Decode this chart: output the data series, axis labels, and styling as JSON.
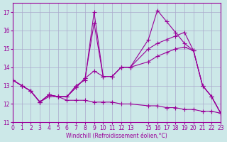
{
  "background_color": "#cce8e8",
  "grid_color": "#aaaacc",
  "line_color": "#990099",
  "xlim": [
    0,
    23
  ],
  "ylim": [
    11,
    17.5
  ],
  "yticks": [
    11,
    12,
    13,
    14,
    15,
    16,
    17
  ],
  "xticks": [
    0,
    1,
    2,
    3,
    4,
    5,
    6,
    7,
    8,
    9,
    10,
    11,
    12,
    13,
    15,
    16,
    17,
    18,
    19,
    20,
    21,
    22,
    23
  ],
  "xlabel": "Windchill (Refroidissement éolien,°C)",
  "series": [
    [
      13.3,
      13.0,
      12.7,
      12.1,
      12.5,
      12.4,
      12.4,
      13.0,
      13.3,
      17.0,
      13.5,
      13.5,
      14.0,
      14.0,
      15.5,
      17.1,
      16.5,
      15.9,
      15.3,
      14.9,
      13.0,
      12.4,
      11.5
    ],
    [
      13.3,
      13.0,
      12.7,
      12.1,
      12.5,
      12.4,
      12.4,
      12.9,
      13.4,
      16.4,
      13.5,
      13.5,
      14.0,
      14.0,
      15.0,
      15.3,
      15.5,
      15.7,
      15.9,
      14.9,
      13.0,
      12.4,
      11.5
    ],
    [
      13.3,
      13.0,
      12.7,
      12.1,
      12.5,
      12.4,
      12.4,
      12.9,
      13.4,
      13.8,
      13.5,
      13.5,
      14.0,
      14.0,
      14.3,
      14.6,
      14.8,
      15.0,
      15.1,
      14.9,
      13.0,
      12.4,
      11.5
    ],
    [
      13.3,
      13.0,
      12.7,
      12.1,
      12.4,
      12.4,
      12.2,
      12.2,
      12.2,
      12.1,
      12.1,
      12.1,
      12.0,
      12.0,
      11.9,
      11.9,
      11.8,
      11.8,
      11.7,
      11.7,
      11.6,
      11.6,
      11.5
    ]
  ],
  "x_values": [
    0,
    1,
    2,
    3,
    4,
    5,
    6,
    7,
    8,
    9,
    10,
    11,
    12,
    13,
    15,
    16,
    17,
    18,
    19,
    20,
    21,
    22,
    23
  ]
}
